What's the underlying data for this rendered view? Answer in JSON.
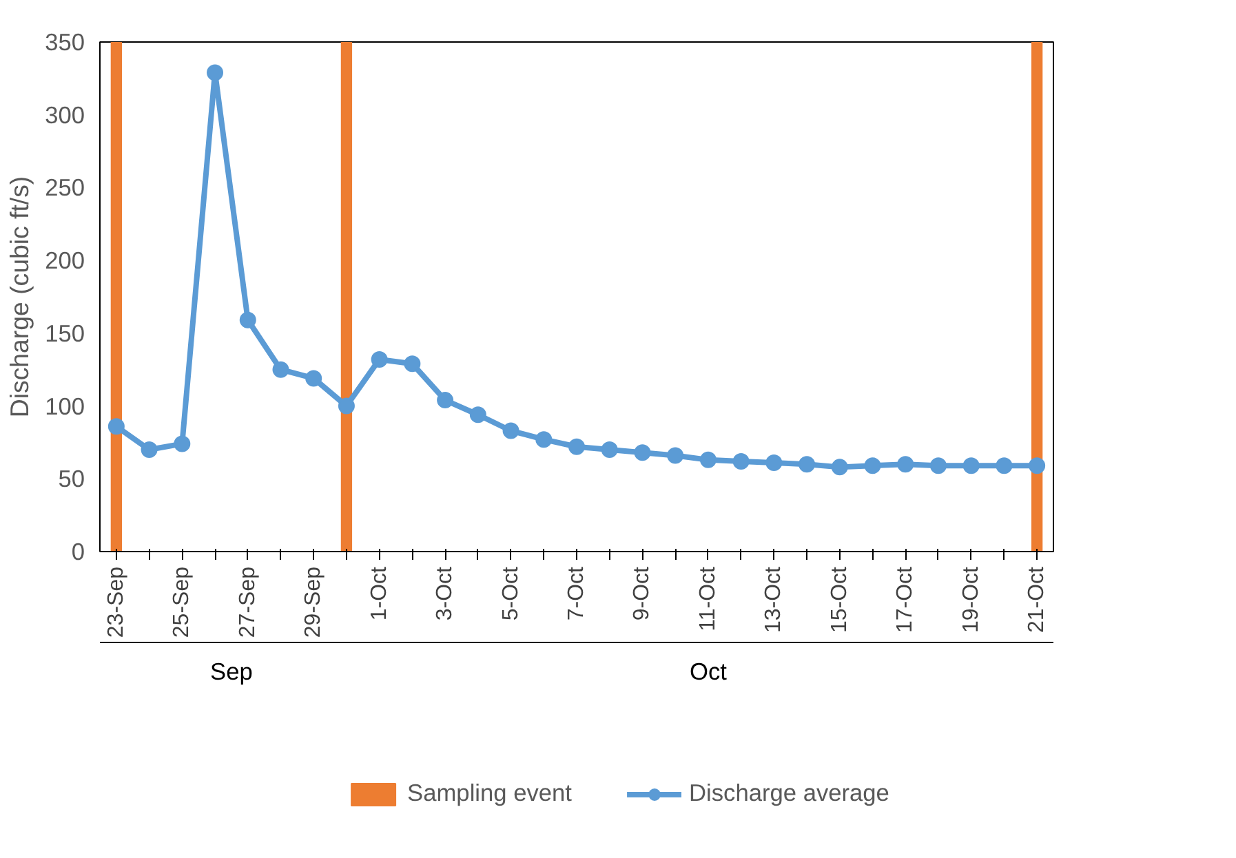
{
  "chart_data": {
    "type": "line",
    "ylabel": "Discharge (cubic ft/s)",
    "categories": [
      "23-Sep",
      null,
      "25-Sep",
      null,
      "27-Sep",
      null,
      "29-Sep",
      null,
      "1-Oct",
      null,
      "3-Oct",
      null,
      "5-Oct",
      null,
      "7-Oct",
      null,
      "9-Oct",
      null,
      "11-Oct",
      null,
      "13-Oct",
      null,
      "15-Oct",
      null,
      "17-Oct",
      null,
      "19-Oct",
      null,
      "21-Oct"
    ],
    "series": [
      {
        "name": "Sampling event",
        "type": "bar",
        "color": "#ed7d31",
        "values": [
          350,
          null,
          null,
          null,
          null,
          null,
          null,
          350,
          null,
          null,
          null,
          null,
          null,
          null,
          null,
          null,
          null,
          null,
          null,
          null,
          null,
          null,
          null,
          null,
          null,
          null,
          null,
          null,
          350
        ]
      },
      {
        "name": "Discharge average",
        "color": "#5b9bd5",
        "values": [
          86,
          70,
          74,
          329,
          159,
          125,
          119,
          100,
          132,
          129,
          104,
          94,
          83,
          77,
          72,
          70,
          68,
          66,
          63,
          62,
          61,
          60,
          58,
          59,
          60,
          59,
          59,
          59,
          59
        ]
      }
    ],
    "annotations": [
      "Sep",
      "Oct"
    ],
    "ylim": [
      0,
      350
    ],
    "yticks": [
      0,
      50,
      100,
      150,
      200,
      250,
      300,
      350
    ],
    "grid": false,
    "legend": "bottom",
    "marker": "circle",
    "line_style": "solid"
  }
}
